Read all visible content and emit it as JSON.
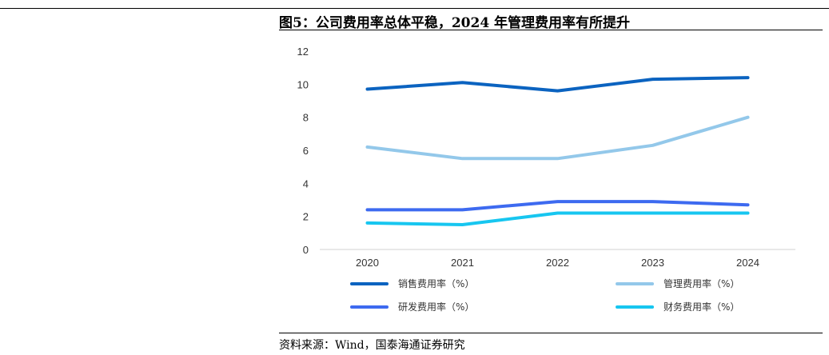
{
  "figure": {
    "title": "图5：公司费用率总体平稳，2024 年管理费用率有所提升",
    "source": "资料来源：Wind，国泰海通证券研究"
  },
  "chart_data": {
    "type": "line",
    "x": [
      "2020",
      "2021",
      "2022",
      "2023",
      "2024"
    ],
    "ylim": [
      0,
      12
    ],
    "yticks": [
      "0",
      "2",
      "4",
      "6",
      "8",
      "10",
      "12"
    ],
    "grid": false,
    "legend_position": "bottom",
    "series": [
      {
        "name": "销售费用率（%）",
        "color": "#0b63c0",
        "values": [
          9.7,
          10.1,
          9.6,
          10.3,
          10.4
        ]
      },
      {
        "name": "管理费用率（%）",
        "color": "#93c8ea",
        "values": [
          6.2,
          5.5,
          5.5,
          6.3,
          8.0
        ]
      },
      {
        "name": "研发费用率（%）",
        "color": "#3d6af0",
        "values": [
          2.4,
          2.4,
          2.9,
          2.9,
          2.7
        ]
      },
      {
        "name": "财务费用率（%）",
        "color": "#17c6f0",
        "values": [
          1.6,
          1.5,
          2.2,
          2.2,
          2.2
        ]
      }
    ]
  }
}
